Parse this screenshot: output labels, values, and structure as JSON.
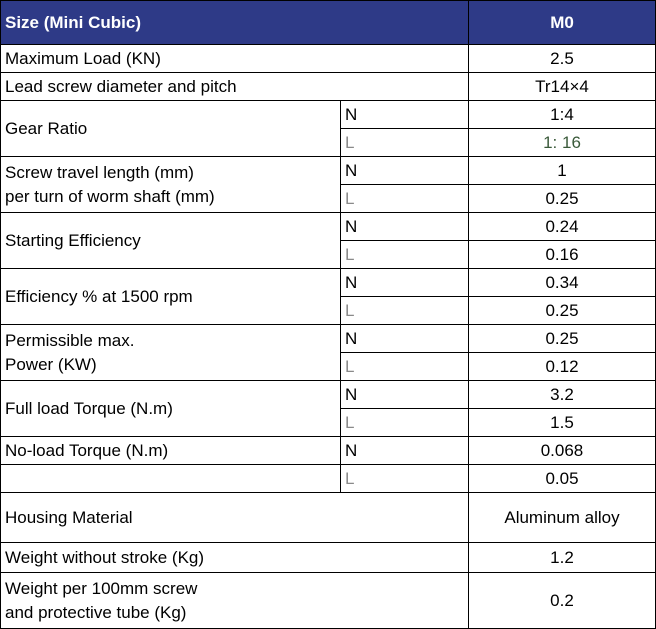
{
  "header": {
    "size_label": "Size (Mini Cubic)",
    "model": "M0"
  },
  "max_load": {
    "label": "Maximum Load (KN)",
    "value": "2.5"
  },
  "lead_screw": {
    "label": "Lead screw diameter and pitch",
    "value": "Tr14×4"
  },
  "gear_ratio": {
    "label": "Gear Ratio",
    "n": "N",
    "n_value": "1:4",
    "l": "L",
    "l_value": "1: 16"
  },
  "travel": {
    "label_line1": "Screw travel length (mm)",
    "label_line2": "per turn of worm shaft (mm)",
    "n": "N",
    "n_value": "1",
    "l": "L",
    "l_value": "0.25"
  },
  "starting_eff": {
    "label": "Starting Efficiency",
    "n": "N",
    "n_value": "0.24",
    "l": "L",
    "l_value": "0.16"
  },
  "efficiency": {
    "label": "Efficiency % at 1500 rpm",
    "n": "N",
    "n_value": "0.34",
    "l": "L",
    "l_value": "0.25"
  },
  "power": {
    "label_line1": "Permissible max.",
    "label_line2": "Power (KW)",
    "n": "N",
    "n_value": "0.25",
    "l": "L",
    "l_value": "0.12"
  },
  "full_torque": {
    "label": "Full load Torque (N.m)",
    "n": "N",
    "n_value": "3.2",
    "l": "L",
    "l_value": "1.5"
  },
  "noload_torque": {
    "label": "No-load Torque (N.m)",
    "n": "N",
    "n_value": "0.068",
    "l": "L",
    "l_value": "0.05"
  },
  "housing": {
    "label": "Housing Material",
    "value": "Aluminum alloy"
  },
  "weight": {
    "label": "Weight without stroke (Kg)",
    "value": "1.2"
  },
  "weight_tube": {
    "label_line1": "Weight per 100mm screw",
    "label_line2": "and protective tube (Kg)",
    "value": "0.2"
  },
  "colors": {
    "header_bg": "#2e3a87",
    "header_text": "#ffffff",
    "l_text": "#8a8a8a"
  }
}
